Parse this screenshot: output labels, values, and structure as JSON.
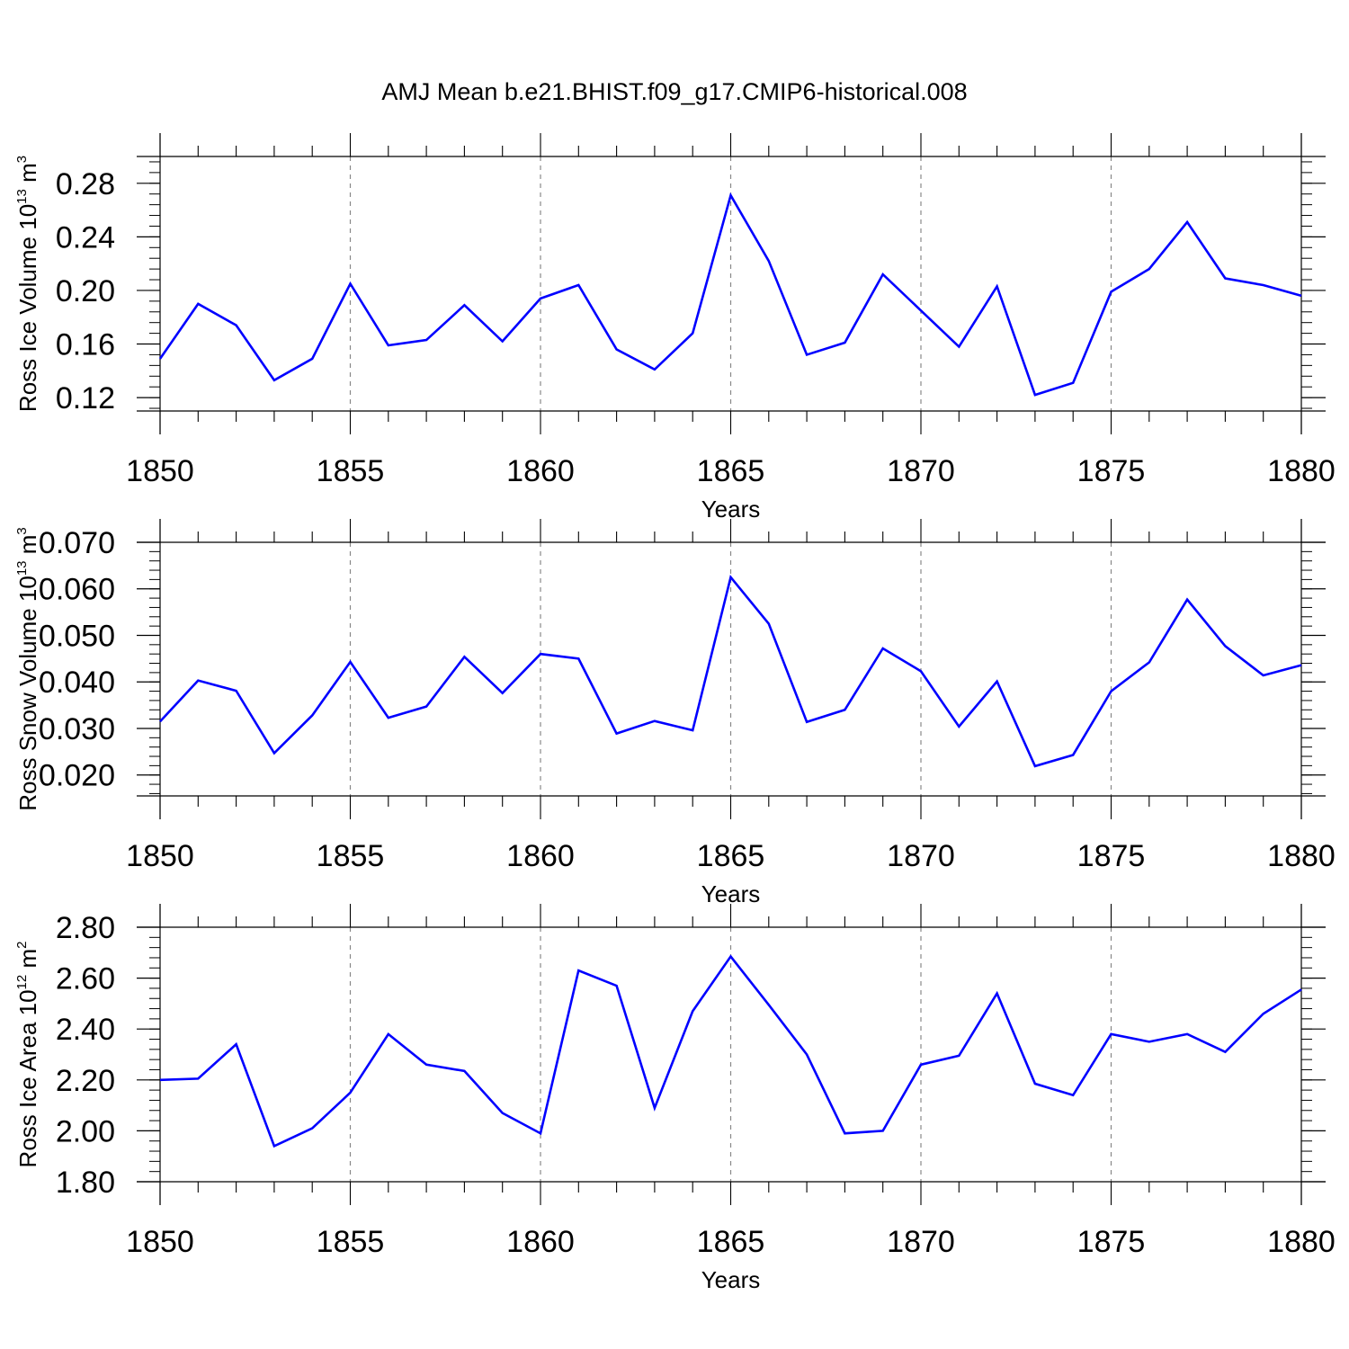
{
  "figure": {
    "title": "AMJ Mean b.e21.BHIST.f09_g17.CMIP6-historical.008",
    "line_color": "#0000ff",
    "grid_color": "#888888"
  },
  "chart_data": [
    {
      "type": "line",
      "xlabel": "Years",
      "ylabel": {
        "prefix": "Ross Ice Volume 10",
        "exp1": "13",
        "unit": " m",
        "exp2": "3"
      },
      "xlim": [
        1850,
        1880
      ],
      "ylim": [
        0.11,
        0.3
      ],
      "x_ticks": [
        "1850",
        "1855",
        "1860",
        "1865",
        "1870",
        "1875",
        "1880"
      ],
      "y_ticks": [
        "0.12",
        "0.16",
        "0.20",
        "0.24",
        "0.28"
      ],
      "y_tick_values": [
        0.12,
        0.16,
        0.2,
        0.24,
        0.28
      ],
      "y_minor_step": 0.008,
      "x": [
        1850,
        1851,
        1852,
        1853,
        1854,
        1855,
        1856,
        1857,
        1858,
        1859,
        1860,
        1861,
        1862,
        1863,
        1864,
        1865,
        1866,
        1867,
        1868,
        1869,
        1870,
        1871,
        1872,
        1873,
        1874,
        1875,
        1876,
        1877,
        1878,
        1879,
        1880
      ],
      "values": [
        0.149,
        0.19,
        0.174,
        0.133,
        0.149,
        0.205,
        0.159,
        0.163,
        0.189,
        0.162,
        0.194,
        0.204,
        0.156,
        0.141,
        0.168,
        0.271,
        0.222,
        0.152,
        0.161,
        0.212,
        0.185,
        0.158,
        0.203,
        0.122,
        0.131,
        0.199,
        0.216,
        0.251,
        0.209,
        0.204,
        0.196
      ],
      "grid": "vertical-dashed"
    },
    {
      "type": "line",
      "xlabel": "Years",
      "ylabel": {
        "prefix": "Ross Snow Volume 10",
        "exp1": "13",
        "unit": " m",
        "exp2": "3"
      },
      "xlim": [
        1850,
        1880
      ],
      "ylim": [
        0.0155,
        0.07
      ],
      "x_ticks": [
        "1850",
        "1855",
        "1860",
        "1865",
        "1870",
        "1875",
        "1880"
      ],
      "y_ticks": [
        "0.020",
        "0.030",
        "0.040",
        "0.050",
        "0.060",
        "0.070"
      ],
      "y_tick_values": [
        0.02,
        0.03,
        0.04,
        0.05,
        0.06,
        0.07
      ],
      "y_minor_step": 0.002,
      "x": [
        1850,
        1851,
        1852,
        1853,
        1854,
        1855,
        1856,
        1857,
        1858,
        1859,
        1860,
        1861,
        1862,
        1863,
        1864,
        1865,
        1866,
        1867,
        1868,
        1869,
        1870,
        1871,
        1872,
        1873,
        1874,
        1875,
        1876,
        1877,
        1878,
        1879,
        1880
      ],
      "values": [
        0.0315,
        0.0403,
        0.0381,
        0.0247,
        0.0328,
        0.0443,
        0.0323,
        0.0347,
        0.0454,
        0.0376,
        0.046,
        0.045,
        0.0289,
        0.0316,
        0.0296,
        0.0625,
        0.0525,
        0.0314,
        0.034,
        0.0472,
        0.0423,
        0.0304,
        0.0401,
        0.0219,
        0.0243,
        0.038,
        0.0442,
        0.0577,
        0.0477,
        0.0414,
        0.0436
      ],
      "grid": "vertical-dashed"
    },
    {
      "type": "line",
      "xlabel": "Years",
      "ylabel": {
        "prefix": "Ross Ice Area 10",
        "exp1": "12",
        "unit": " m",
        "exp2": "2"
      },
      "xlim": [
        1850,
        1880
      ],
      "ylim": [
        1.8,
        2.8
      ],
      "x_ticks": [
        "1850",
        "1855",
        "1860",
        "1865",
        "1870",
        "1875",
        "1880"
      ],
      "y_ticks": [
        "1.80",
        "2.00",
        "2.20",
        "2.40",
        "2.60",
        "2.80"
      ],
      "y_tick_values": [
        1.8,
        2.0,
        2.2,
        2.4,
        2.6,
        2.8
      ],
      "y_minor_step": 0.04,
      "x": [
        1850,
        1851,
        1852,
        1853,
        1854,
        1855,
        1856,
        1857,
        1858,
        1859,
        1860,
        1861,
        1862,
        1863,
        1864,
        1865,
        1866,
        1867,
        1868,
        1869,
        1870,
        1871,
        1872,
        1873,
        1874,
        1875,
        1876,
        1877,
        1878,
        1879,
        1880
      ],
      "values": [
        2.2,
        2.205,
        2.34,
        1.94,
        2.01,
        2.15,
        2.38,
        2.26,
        2.235,
        2.07,
        1.99,
        2.63,
        2.57,
        2.09,
        2.47,
        2.685,
        2.495,
        2.3,
        1.99,
        2.0,
        2.26,
        2.295,
        2.54,
        2.185,
        2.14,
        2.38,
        2.35,
        2.38,
        2.31,
        2.46,
        2.555
      ],
      "grid": "vertical-dashed"
    }
  ]
}
